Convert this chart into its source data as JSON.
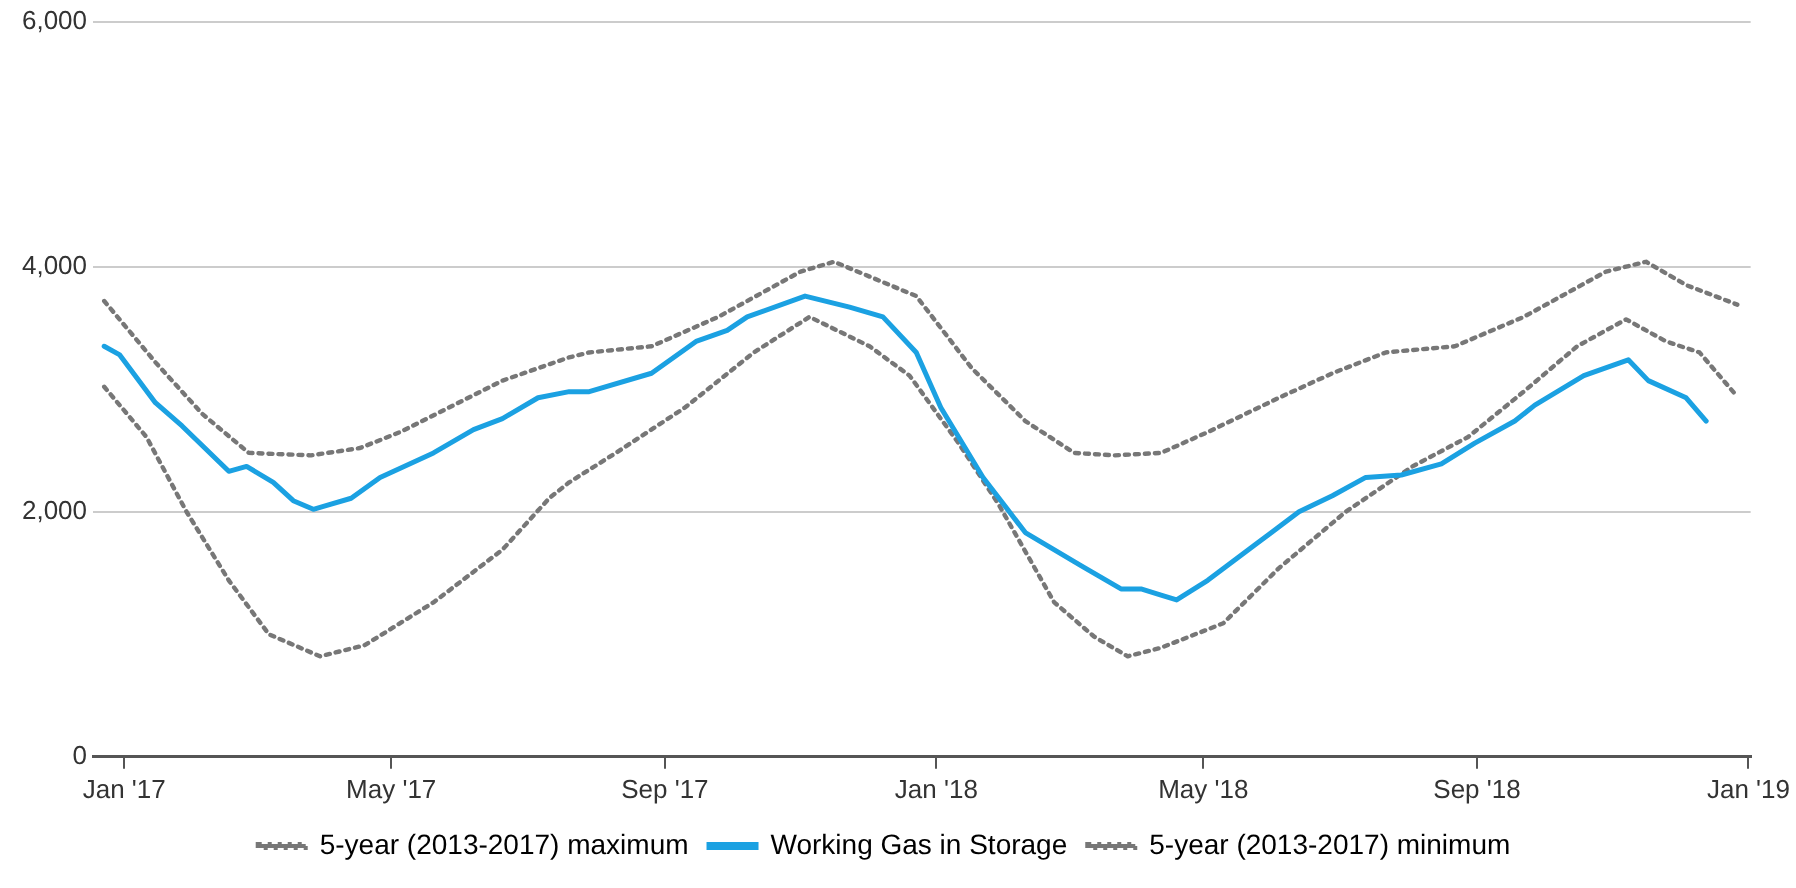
{
  "chart_data": {
    "type": "line",
    "xlim": [
      "2016-12-18",
      "2019-01-02"
    ],
    "xticks": [
      {
        "value": "2017-01-01",
        "label": "Jan '17"
      },
      {
        "value": "2017-05-01",
        "label": "May '17"
      },
      {
        "value": "2017-09-01",
        "label": "Sep '17"
      },
      {
        "value": "2018-01-01",
        "label": "Jan '18"
      },
      {
        "value": "2018-05-01",
        "label": "May '18"
      },
      {
        "value": "2018-09-01",
        "label": "Sep '18"
      },
      {
        "value": "2019-01-01",
        "label": "Jan '19"
      }
    ],
    "ylim": [
      0,
      6000
    ],
    "yticks": [
      {
        "value": 0,
        "label": "0"
      },
      {
        "value": 2000,
        "label": "2,000"
      },
      {
        "value": 4000,
        "label": "4,000"
      },
      {
        "value": 6000,
        "label": "6,000"
      }
    ],
    "grid": "y",
    "legend": "bottom",
    "marker": "none",
    "series": [
      {
        "name": "5-year (2013-2017) maximum",
        "color": "#777777",
        "line_style": "dotted",
        "x": [
          "2016-12-23",
          "2017-01-15",
          "2017-02-05",
          "2017-02-26",
          "2017-03-26",
          "2017-04-17",
          "2017-05-05",
          "2017-06-20",
          "2017-07-20",
          "2017-07-29",
          "2017-08-26",
          "2017-09-25",
          "2017-11-01",
          "2017-11-16",
          "2017-12-23",
          "2018-01-17",
          "2018-02-10",
          "2018-03-04",
          "2018-03-22",
          "2018-04-12",
          "2018-05-03",
          "2018-06-04",
          "2018-06-28",
          "2018-07-22",
          "2018-08-22",
          "2018-09-22",
          "2018-10-29",
          "2018-11-16",
          "2018-12-04",
          "2018-12-27"
        ],
        "values": [
          3720,
          3220,
          2800,
          2480,
          2460,
          2520,
          2650,
          3070,
          3260,
          3300,
          3350,
          3590,
          3960,
          4040,
          3760,
          3170,
          2740,
          2480,
          2460,
          2480,
          2650,
          2930,
          3130,
          3300,
          3350,
          3590,
          3960,
          4040,
          3850,
          3690
        ]
      },
      {
        "name": "Working Gas in Storage",
        "color": "#1ba1e2",
        "line_style": "solid",
        "x": [
          "2016-12-23",
          "2016-12-30",
          "2017-01-15",
          "2017-01-27",
          "2017-02-17",
          "2017-02-25",
          "2017-03-09",
          "2017-03-18",
          "2017-03-27",
          "2017-04-13",
          "2017-04-26",
          "2017-05-20",
          "2017-06-07",
          "2017-06-20",
          "2017-07-06",
          "2017-07-20",
          "2017-07-29",
          "2017-08-26",
          "2017-09-15",
          "2017-09-29",
          "2017-10-08",
          "2017-11-03",
          "2017-11-23",
          "2017-12-08",
          "2017-12-23",
          "2018-01-03",
          "2018-01-22",
          "2018-02-10",
          "2018-03-07",
          "2018-03-25",
          "2018-04-03",
          "2018-04-12",
          "2018-04-19",
          "2018-05-03",
          "2018-05-25",
          "2018-06-13",
          "2018-06-28",
          "2018-07-13",
          "2018-07-29",
          "2018-08-16",
          "2018-08-31",
          "2018-09-18",
          "2018-09-27",
          "2018-10-19",
          "2018-11-08",
          "2018-11-17",
          "2018-12-04",
          "2018-12-13"
        ],
        "values": [
          3350,
          3280,
          2890,
          2700,
          2330,
          2370,
          2240,
          2090,
          2020,
          2110,
          2280,
          2480,
          2670,
          2760,
          2930,
          2980,
          2980,
          3130,
          3390,
          3480,
          3590,
          3760,
          3670,
          3590,
          3300,
          2850,
          2280,
          1830,
          1560,
          1370,
          1370,
          1320,
          1280,
          1440,
          1740,
          2000,
          2130,
          2280,
          2300,
          2390,
          2560,
          2740,
          2870,
          3110,
          3240,
          3070,
          2930,
          2740
        ]
      },
      {
        "name": "5-year (2013-2017) minimum",
        "color": "#777777",
        "line_style": "dotted",
        "x": [
          "2016-12-23",
          "2017-01-11",
          "2017-01-29",
          "2017-02-17",
          "2017-03-07",
          "2017-03-30",
          "2017-04-19",
          "2017-05-20",
          "2017-06-20",
          "2017-07-11",
          "2017-07-20",
          "2017-08-10",
          "2017-09-10",
          "2017-10-11",
          "2017-11-05",
          "2017-12-02",
          "2017-12-20",
          "2018-01-11",
          "2018-01-29",
          "2018-02-23",
          "2018-03-13",
          "2018-03-28",
          "2018-04-12",
          "2018-05-10",
          "2018-06-04",
          "2018-07-04",
          "2018-08-03",
          "2018-08-28",
          "2018-09-22",
          "2018-10-16",
          "2018-11-07",
          "2018-11-25",
          "2018-12-10",
          "2018-12-27"
        ],
        "values": [
          3020,
          2610,
          2000,
          1440,
          1000,
          820,
          910,
          1260,
          1690,
          2110,
          2240,
          2480,
          2850,
          3300,
          3590,
          3350,
          3110,
          2560,
          2060,
          1260,
          980,
          820,
          890,
          1090,
          1540,
          2000,
          2370,
          2610,
          2980,
          3350,
          3570,
          3390,
          3300,
          2940
        ]
      }
    ]
  }
}
